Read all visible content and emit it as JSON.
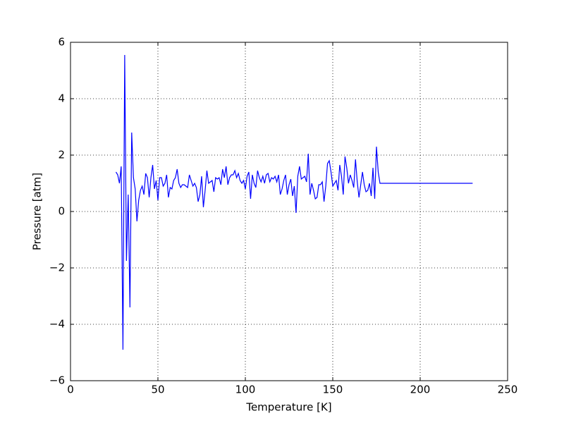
{
  "chart_data": {
    "type": "line",
    "xlabel": "Temperature [K]",
    "ylabel": "Pressure [atm]",
    "x": [
      26,
      27,
      28,
      29,
      30,
      31,
      32,
      33,
      34,
      35,
      36,
      37,
      38,
      39,
      40,
      41,
      42,
      43,
      44,
      45,
      46,
      47,
      48,
      49,
      50,
      51,
      52,
      53,
      54,
      55,
      56,
      57,
      58,
      59,
      60,
      61,
      62,
      63,
      64,
      65,
      66,
      67,
      68,
      69,
      70,
      71,
      72,
      73,
      74,
      75,
      76,
      77,
      78,
      79,
      80,
      81,
      82,
      83,
      84,
      85,
      86,
      87,
      88,
      89,
      90,
      91,
      92,
      93,
      94,
      95,
      96,
      97,
      98,
      99,
      100,
      101,
      102,
      103,
      104,
      105,
      106,
      107,
      108,
      109,
      110,
      111,
      112,
      113,
      114,
      115,
      116,
      117,
      118,
      119,
      120,
      121,
      122,
      123,
      124,
      125,
      126,
      127,
      128,
      129,
      130,
      131,
      132,
      133,
      134,
      135,
      136,
      137,
      138,
      139,
      140,
      141,
      142,
      143,
      144,
      145,
      146,
      147,
      148,
      149,
      150,
      151,
      152,
      153,
      154,
      155,
      156,
      157,
      158,
      159,
      160,
      161,
      162,
      163,
      164,
      165,
      166,
      167,
      168,
      169,
      170,
      171,
      172,
      173,
      174,
      175,
      176,
      177,
      178,
      230
    ],
    "values": [
      1.4,
      1.3,
      1.0,
      1.6,
      -4.9,
      5.55,
      -1.75,
      0.6,
      -3.4,
      2.8,
      1.2,
      0.8,
      -0.35,
      0.4,
      0.75,
      0.9,
      0.6,
      1.35,
      1.2,
      0.5,
      1.2,
      1.65,
      0.8,
      1.1,
      0.4,
      1.2,
      1.2,
      0.9,
      1.0,
      1.3,
      0.5,
      0.85,
      0.8,
      1.1,
      1.2,
      1.5,
      1.0,
      0.85,
      0.95,
      0.95,
      0.9,
      0.85,
      1.3,
      1.1,
      0.9,
      1.0,
      0.85,
      0.35,
      0.6,
      1.25,
      0.15,
      0.75,
      1.45,
      1.0,
      1.05,
      1.1,
      0.7,
      1.2,
      1.15,
      1.2,
      0.95,
      1.5,
      1.2,
      1.6,
      0.95,
      1.2,
      1.3,
      1.3,
      1.45,
      1.2,
      1.35,
      1.1,
      1.0,
      1.1,
      0.8,
      1.25,
      1.4,
      0.45,
      1.3,
      1.0,
      0.85,
      1.45,
      1.2,
      1.05,
      1.25,
      1.0,
      1.3,
      1.35,
      1.05,
      1.2,
      1.15,
      1.25,
      1.05,
      1.3,
      0.6,
      0.8,
      1.1,
      1.3,
      0.6,
      0.95,
      1.15,
      0.55,
      0.9,
      -0.05,
      1.25,
      1.6,
      1.15,
      1.2,
      1.25,
      1.05,
      2.05,
      0.6,
      1.0,
      0.75,
      0.45,
      0.5,
      0.95,
      0.95,
      1.05,
      0.35,
      0.9,
      1.7,
      1.8,
      1.4,
      0.9,
      1.0,
      1.1,
      0.75,
      1.65,
      1.25,
      0.6,
      1.95,
      1.55,
      1.0,
      1.3,
      1.1,
      0.85,
      1.85,
      1.05,
      0.5,
      0.95,
      1.4,
      0.95,
      0.7,
      0.75,
      1.0,
      0.55,
      1.55,
      0.45,
      2.3,
      1.4,
      1.0,
      1.0,
      1.0
    ],
    "color": "#0000ff",
    "xlim": [
      0,
      250
    ],
    "xticks": [
      0,
      50,
      100,
      150,
      200,
      250
    ],
    "ylim": [
      -6,
      6
    ],
    "yticks": [
      {
        "value": -6,
        "label": "−6"
      },
      {
        "value": -4,
        "label": "−4"
      },
      {
        "value": -2,
        "label": "−2"
      },
      0,
      2,
      4,
      6
    ],
    "grid": true
  }
}
